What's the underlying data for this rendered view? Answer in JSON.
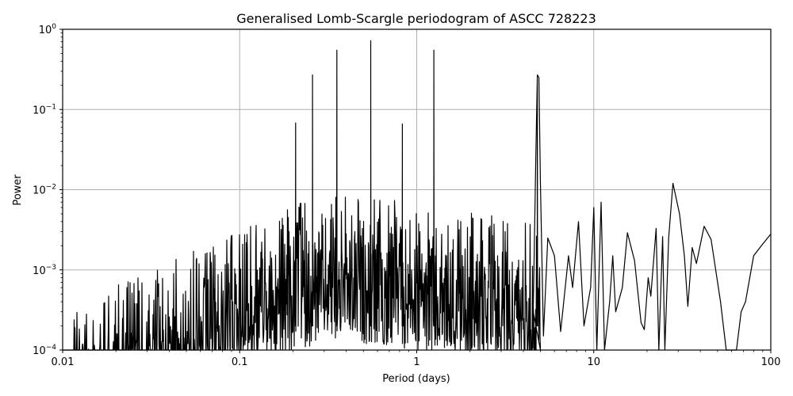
{
  "chart_data": {
    "type": "line",
    "title": "Generalised Lomb-Scargle periodogram of ASCC 728223",
    "xlabel": "Period (days)",
    "ylabel": "Power",
    "xscale": "log",
    "yscale": "log",
    "xlim": [
      0.01,
      100
    ],
    "ylim": [
      0.0001,
      1
    ],
    "grid": true,
    "legend": null,
    "line_color": "#000000",
    "grid_color": "#b0b0b0",
    "x_ticks": [
      {
        "value": 0.01,
        "label": "0.01"
      },
      {
        "value": 0.1,
        "label": "0.1"
      },
      {
        "value": 1,
        "label": "1"
      },
      {
        "value": 10,
        "label": "10"
      },
      {
        "value": 100,
        "label": "100"
      }
    ],
    "y_ticks": [
      {
        "value": 0.0001,
        "base": "10",
        "exp": "−4"
      },
      {
        "value": 0.001,
        "base": "10",
        "exp": "−3"
      },
      {
        "value": 0.01,
        "base": "10",
        "exp": "−2"
      },
      {
        "value": 0.1,
        "base": "10",
        "exp": "−1"
      },
      {
        "value": 1,
        "base": "10",
        "exp": "0"
      }
    ],
    "dominant_peaks": [
      {
        "period": 0.207,
        "power": 0.068
      },
      {
        "period": 0.258,
        "power": 0.27
      },
      {
        "period": 0.354,
        "power": 0.55
      },
      {
        "period": 0.55,
        "power": 0.72
      },
      {
        "period": 0.83,
        "power": 0.066
      },
      {
        "period": 1.25,
        "power": 0.55
      },
      {
        "period": 4.8,
        "power": 0.27
      },
      {
        "period": 28,
        "power": 0.012
      }
    ],
    "long_period_curve": [
      [
        5.2,
        0.00015
      ],
      [
        5.5,
        0.0025
      ],
      [
        6.0,
        0.0015
      ],
      [
        6.5,
        0.00017
      ],
      [
        7.2,
        0.0015
      ],
      [
        7.6,
        0.0006
      ],
      [
        8.2,
        0.004
      ],
      [
        8.8,
        0.0002
      ],
      [
        9.6,
        0.0006
      ],
      [
        10.0,
        0.006
      ],
      [
        10.4,
        0.0001
      ],
      [
        11.0,
        0.007
      ],
      [
        11.5,
        0.0001
      ],
      [
        12.3,
        0.0004
      ],
      [
        12.8,
        0.0015
      ],
      [
        13.3,
        0.0003
      ],
      [
        14.5,
        0.0006
      ],
      [
        15.5,
        0.0029
      ],
      [
        17.0,
        0.0013
      ],
      [
        18.5,
        0.00022
      ],
      [
        19.3,
        0.00018
      ],
      [
        20.3,
        0.0008
      ],
      [
        21.0,
        0.00047
      ],
      [
        22.5,
        0.0033
      ],
      [
        23.3,
        0.0001
      ],
      [
        24.5,
        0.0026
      ],
      [
        25.2,
        0.0001
      ],
      [
        26.5,
        0.0025
      ],
      [
        28.0,
        0.012
      ],
      [
        30.5,
        0.005
      ],
      [
        32.5,
        0.0015
      ],
      [
        34.0,
        0.00035
      ],
      [
        36.0,
        0.0019
      ],
      [
        38.0,
        0.0012
      ],
      [
        42.0,
        0.0035
      ],
      [
        46.0,
        0.0024
      ],
      [
        52.0,
        0.0004
      ],
      [
        56.0,
        0.0001
      ],
      [
        64.0,
        0.0001
      ],
      [
        68.0,
        0.0003
      ],
      [
        72.0,
        0.0004
      ],
      [
        80.0,
        0.0015
      ],
      [
        90.0,
        0.0021
      ],
      [
        100.0,
        0.0028
      ]
    ]
  }
}
